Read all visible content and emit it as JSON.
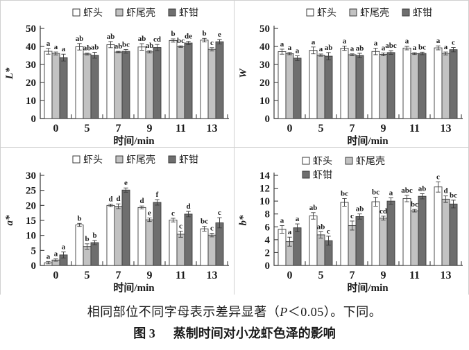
{
  "figure": {
    "caption": {
      "pre": "相同部位不同字母表示差异显著（",
      "italic_var": "P",
      "post": "＜0.05）。下同。"
    },
    "fig_label": "图 3",
    "fig_title": "蒸制时间对小龙虾色泽的影响"
  },
  "colors": {
    "bar_head": "#ffffff",
    "bar_tail": "#c2c2c2",
    "bar_claw": "#6e6e6e",
    "bar_stroke": "#3a3a3a",
    "axis": "#3a3a3a",
    "text": "#1a1a1a",
    "panel_border": "#cfcfcf"
  },
  "chart_data": [
    {
      "type": "bar",
      "ylabel": "L*",
      "xlabel": "时间/min",
      "ylim": [
        0,
        50
      ],
      "yticks": [
        0,
        10,
        20,
        30,
        40,
        50
      ],
      "categories": [
        "0",
        "5",
        "7",
        "9",
        "11",
        "13"
      ],
      "legend_rows": [
        [
          0,
          1,
          2
        ]
      ],
      "legend_pos": {
        "x": 104,
        "y": 17
      },
      "grid": false,
      "series": [
        {
          "name": "虾头",
          "color": "#ffffff",
          "values": [
            37.3,
            39.8,
            41.0,
            39.7,
            43.3,
            43.5
          ],
          "errors": [
            1.6,
            1.8,
            1.7,
            1.8,
            0.9,
            1.0
          ],
          "letters": [
            "a",
            "ab",
            "ab",
            "ab",
            "b",
            "b"
          ]
        },
        {
          "name": "虾尾壳",
          "color": "#c2c2c2",
          "values": [
            36.1,
            35.8,
            36.9,
            37.0,
            39.9,
            38.4
          ],
          "errors": [
            0.8,
            0.5,
            0.4,
            0.6,
            0.4,
            0.9
          ],
          "letters": [
            "a",
            "ab",
            "ab",
            "ab",
            "bc",
            "c"
          ]
        },
        {
          "name": "虾钳",
          "color": "#6e6e6e",
          "values": [
            33.8,
            35.1,
            37.3,
            39.4,
            41.9,
            42.6
          ],
          "errors": [
            1.9,
            1.6,
            1.0,
            1.7,
            0.9,
            1.2
          ],
          "letters": [
            "a",
            "ab",
            "bc",
            "cd",
            "de",
            "e"
          ]
        }
      ]
    },
    {
      "type": "bar",
      "ylabel": "W",
      "xlabel": "时间/min",
      "ylim": [
        0,
        50
      ],
      "yticks": [
        0,
        10,
        20,
        30,
        40,
        50
      ],
      "categories": [
        "0",
        "5",
        "7",
        "9",
        "11",
        "13"
      ],
      "legend_rows": [
        [
          0,
          1,
          2
        ]
      ],
      "legend_pos": {
        "x": 104,
        "y": 17
      },
      "grid": false,
      "series": [
        {
          "name": "虾头",
          "color": "#ffffff",
          "values": [
            37.1,
            37.8,
            39.0,
            37.2,
            39.1,
            39.2
          ],
          "errors": [
            1.4,
            1.9,
            1.2,
            1.8,
            1.0,
            1.1
          ],
          "letters": [
            "a",
            "a",
            "a",
            "a",
            "a",
            "a"
          ]
        },
        {
          "name": "虾尾壳",
          "color": "#c2c2c2",
          "values": [
            36.0,
            35.2,
            35.4,
            35.6,
            36.0,
            36.1
          ],
          "errors": [
            0.6,
            0.6,
            0.5,
            0.8,
            0.5,
            0.8
          ],
          "letters": [
            "a",
            "a",
            "a",
            "a",
            "a",
            "a"
          ]
        },
        {
          "name": "虾钳",
          "color": "#6e6e6e",
          "values": [
            33.5,
            34.6,
            35.0,
            36.6,
            36.1,
            38.2
          ],
          "errors": [
            1.3,
            2.0,
            1.2,
            1.0,
            0.7,
            1.2
          ],
          "letters": [
            "a",
            "ab",
            "ab",
            "abc",
            "bc",
            "c"
          ]
        }
      ]
    },
    {
      "type": "bar",
      "ylabel": "a*",
      "xlabel": "时间/min",
      "ylim": [
        0,
        30
      ],
      "yticks": [
        0,
        5,
        10,
        15,
        20,
        25,
        30
      ],
      "categories": [
        "0",
        "5",
        "7",
        "9",
        "11",
        "13"
      ],
      "legend_rows": [
        [
          0,
          1,
          2
        ]
      ],
      "legend_pos": {
        "x": 104,
        "y": 17
      },
      "grid": false,
      "series": [
        {
          "name": "虾头",
          "color": "#ffffff",
          "values": [
            0.9,
            13.5,
            20.0,
            19.3,
            15.1,
            12.2
          ],
          "errors": [
            0.4,
            0.5,
            0.4,
            0.5,
            0.6,
            0.8
          ],
          "letters": [
            "a",
            "b",
            "d",
            "d",
            "c",
            "bc"
          ]
        },
        {
          "name": "虾尾壳",
          "color": "#c2c2c2",
          "values": [
            1.8,
            6.3,
            19.7,
            15.2,
            10.4,
            10.1
          ],
          "errors": [
            0.4,
            0.9,
            0.8,
            0.6,
            1.0,
            0.6
          ],
          "letters": [
            "a",
            "b",
            "d",
            "e",
            "c",
            "c"
          ]
        },
        {
          "name": "虾钳",
          "color": "#6e6e6e",
          "values": [
            3.5,
            7.6,
            25.1,
            21.0,
            17.1,
            14.2
          ],
          "errors": [
            1.0,
            0.7,
            0.7,
            0.9,
            0.9,
            1.7
          ],
          "letters": [
            "a",
            "b",
            "e",
            "f",
            "d",
            "c"
          ]
        }
      ]
    },
    {
      "type": "bar",
      "ylabel": "b*",
      "xlabel": "时间/min",
      "ylim": [
        0,
        14
      ],
      "yticks": [
        0,
        2,
        4,
        6,
        8,
        10,
        12,
        14
      ],
      "categories": [
        "0",
        "5",
        "7",
        "9",
        "11",
        "13"
      ],
      "legend_rows": [
        [
          0,
          1
        ],
        [
          2
        ]
      ],
      "legend_pos": {
        "x": 98,
        "y": 19
      },
      "grid": false,
      "series": [
        {
          "name": "虾头",
          "color": "#ffffff",
          "values": [
            5.6,
            7.7,
            9.8,
            9.9,
            10.4,
            12.2
          ],
          "errors": [
            0.6,
            0.5,
            0.6,
            0.7,
            0.5,
            0.8
          ],
          "letters": [
            "a",
            "ab",
            "bc",
            "bc",
            "abc",
            "c"
          ]
        },
        {
          "name": "虾尾壳",
          "color": "#c2c2c2",
          "values": [
            3.7,
            4.75,
            6.2,
            7.35,
            8.5,
            10.3
          ],
          "errors": [
            0.7,
            0.5,
            0.7,
            0.3,
            0.2,
            0.5
          ],
          "letters": [
            "a",
            "ab",
            "c",
            "cd",
            "bc",
            "d"
          ]
        },
        {
          "name": "虾钳",
          "color": "#6e6e6e",
          "values": [
            5.85,
            3.85,
            7.6,
            10.0,
            10.75,
            9.55
          ],
          "errors": [
            0.6,
            0.7,
            0.4,
            0.5,
            0.4,
            0.6
          ],
          "letters": [
            "a",
            "c",
            "ab",
            "a",
            "ab",
            "bc"
          ]
        }
      ]
    }
  ]
}
